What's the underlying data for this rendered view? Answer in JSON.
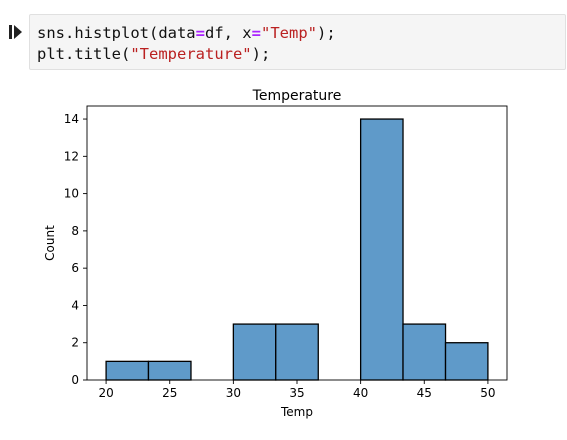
{
  "code_cell": {
    "lines": [
      {
        "tokens": [
          {
            "text": "sns.histplot(data",
            "kind": "plain"
          },
          {
            "text": "=",
            "kind": "eq"
          },
          {
            "text": "df, x",
            "kind": "plain"
          },
          {
            "text": "=",
            "kind": "eq"
          },
          {
            "text": "\"Temp\"",
            "kind": "str"
          },
          {
            "text": ");",
            "kind": "plain"
          }
        ]
      },
      {
        "tokens": [
          {
            "text": "plt.title(",
            "kind": "plain"
          },
          {
            "text": "\"Temperature\"",
            "kind": "str"
          },
          {
            "text": ");",
            "kind": "plain"
          }
        ]
      }
    ],
    "run_icon": "run-cell-icon"
  },
  "chart_data": {
    "type": "bar",
    "title": "Temperature",
    "xlabel": "Temp",
    "ylabel": "Count",
    "bins": [
      {
        "x0": 20,
        "x1": 23.33,
        "count": 1
      },
      {
        "x0": 23.33,
        "x1": 26.67,
        "count": 1
      },
      {
        "x0": 26.67,
        "x1": 30,
        "count": 0
      },
      {
        "x0": 30,
        "x1": 33.33,
        "count": 3
      },
      {
        "x0": 33.33,
        "x1": 36.67,
        "count": 3
      },
      {
        "x0": 36.67,
        "x1": 40,
        "count": 0
      },
      {
        "x0": 40,
        "x1": 43.33,
        "count": 14
      },
      {
        "x0": 43.33,
        "x1": 46.67,
        "count": 3
      },
      {
        "x0": 46.67,
        "x1": 50,
        "count": 2
      }
    ],
    "xlim": [
      18.5,
      51.5
    ],
    "ylim": [
      0,
      14.7
    ],
    "xticks": [
      20,
      25,
      30,
      35,
      40,
      45,
      50
    ],
    "yticks": [
      0,
      2,
      4,
      6,
      8,
      10,
      12,
      14
    ],
    "bar_color": "#5f9ac9",
    "edge_color": "#000000",
    "grid": false
  }
}
